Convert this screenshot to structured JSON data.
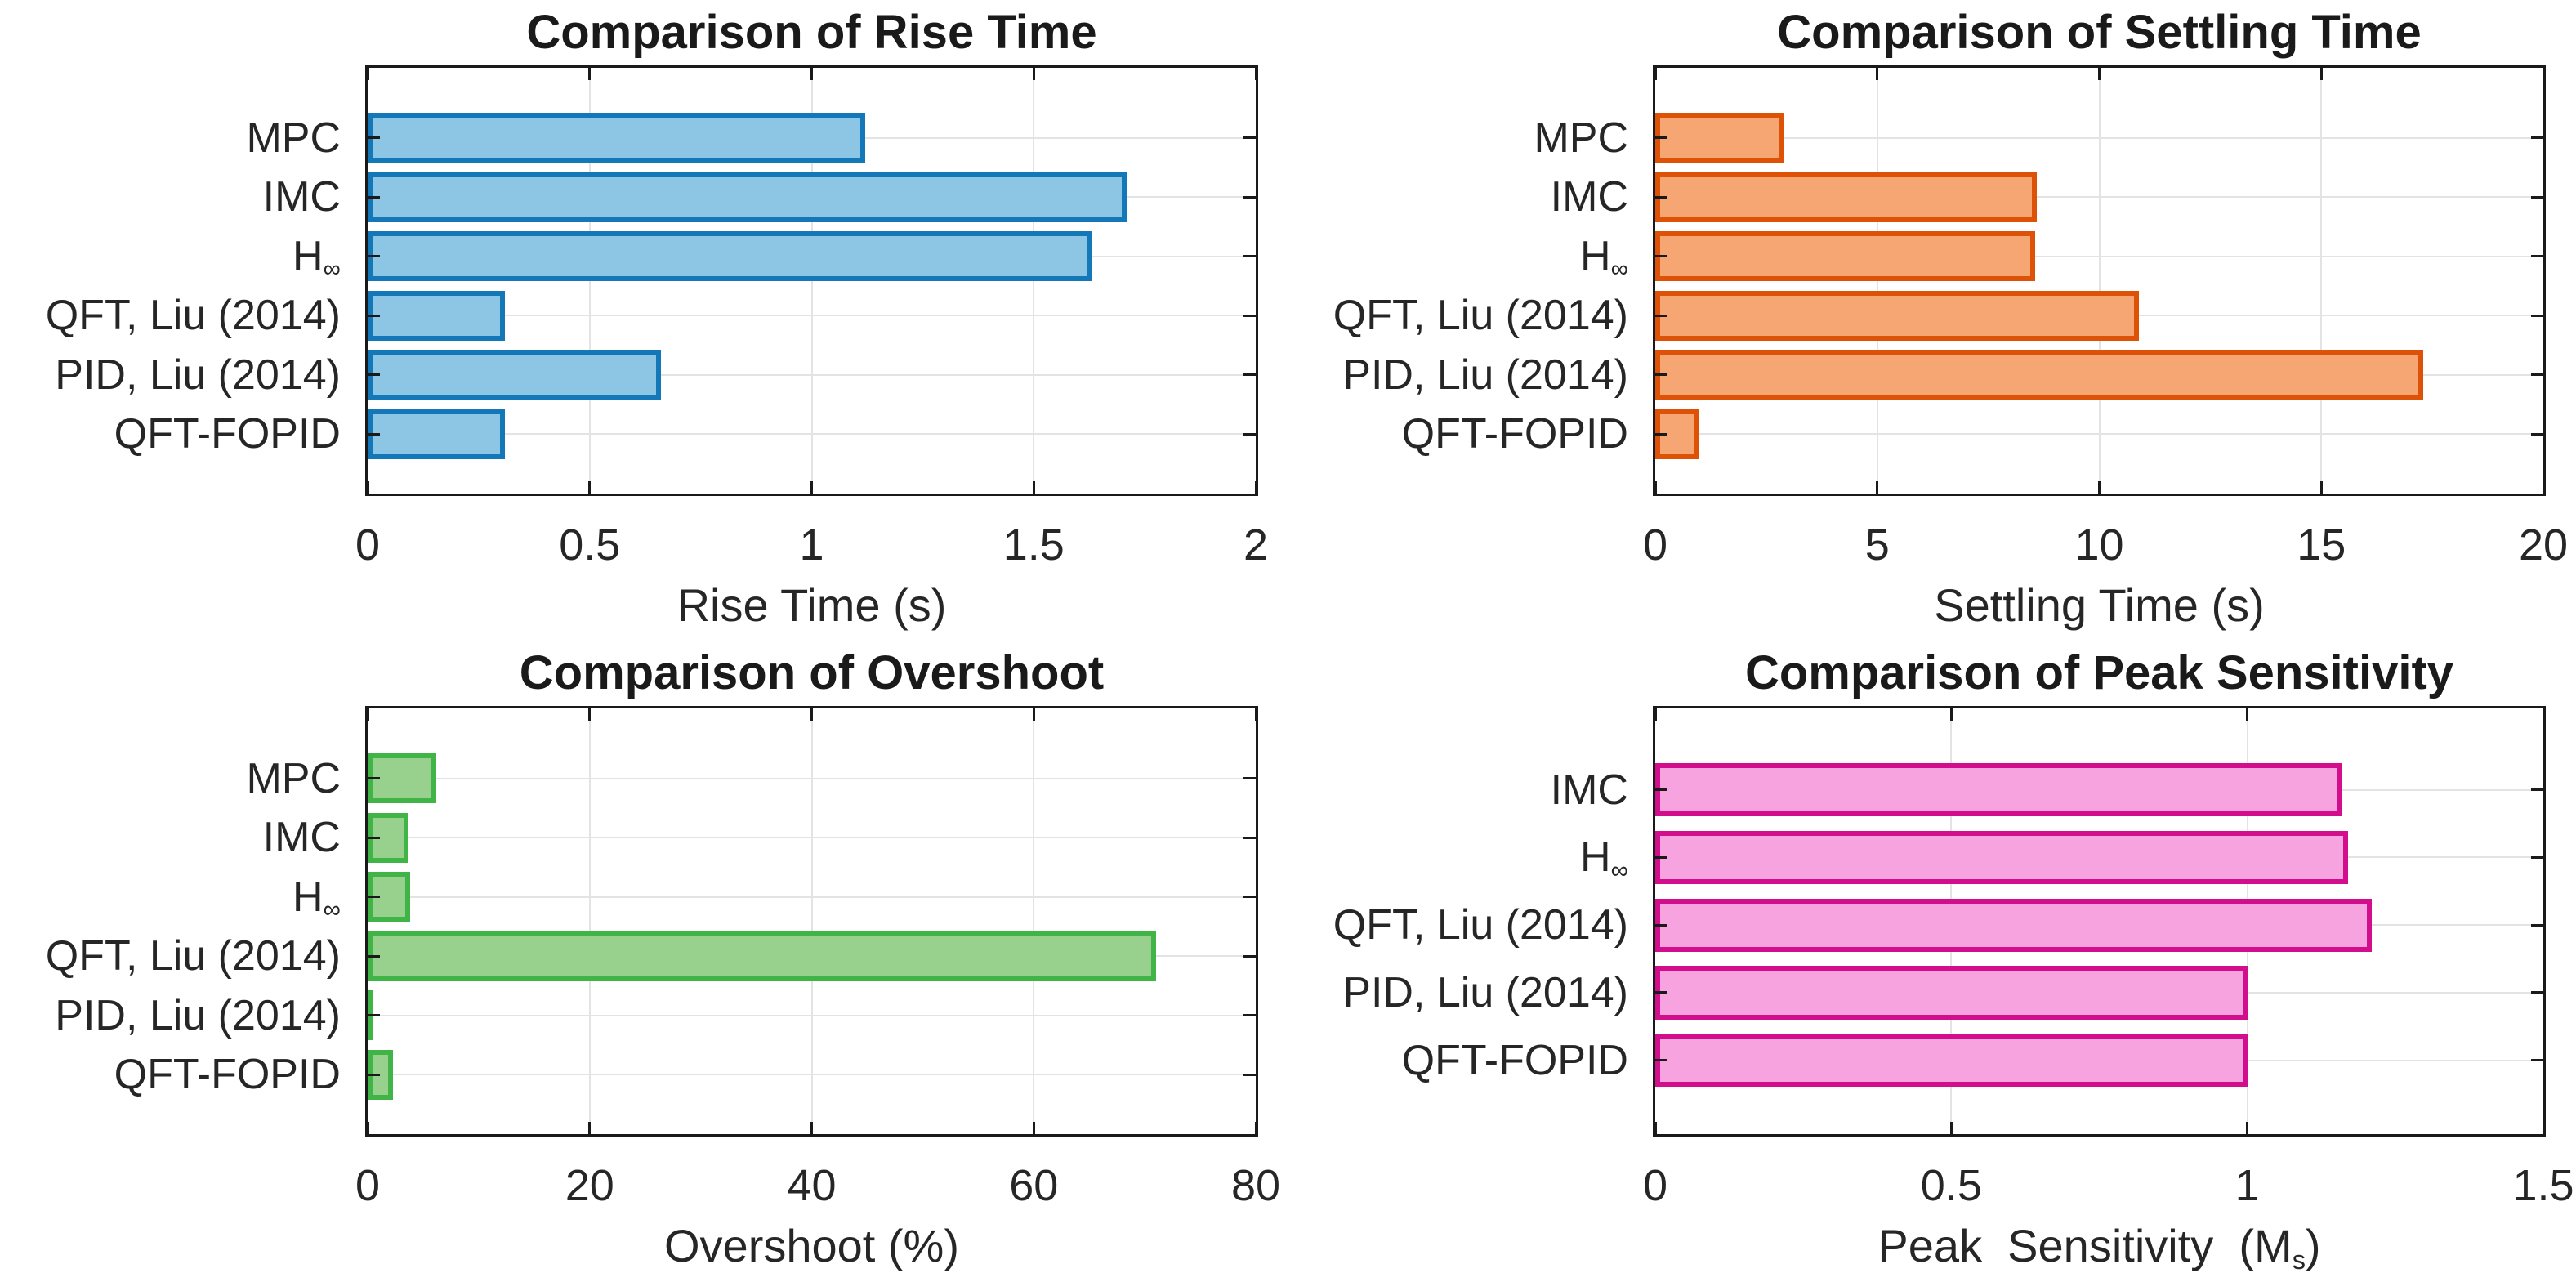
{
  "figure": {
    "background": "#ffffff",
    "text_color": "#262626",
    "title_color": "#1a1a1a",
    "axis_color": "#1a1a1a",
    "grid_color": "#e3e3e3"
  },
  "chart_data": [
    {
      "type": "bar",
      "orientation": "horizontal",
      "title": "Comparison of Rise Time",
      "xlabel": {
        "text": "Rise Time (s)"
      },
      "categories": [
        {
          "text": "MPC"
        },
        {
          "text": "IMC"
        },
        {
          "text": "H∞",
          "base": "H",
          "sub": "∞"
        },
        {
          "text": "QFT, Liu (2014)"
        },
        {
          "text": "PID, Liu (2014)"
        },
        {
          "text": "QFT-FOPID"
        }
      ],
      "values": [
        1.12,
        1.71,
        1.63,
        0.31,
        0.66,
        0.31
      ],
      "xlim": [
        0,
        2
      ],
      "xticks": [
        0,
        0.5,
        1,
        1.5,
        2
      ],
      "xtick_labels": [
        "0",
        "0.5",
        "1",
        "1.5",
        "2"
      ],
      "grid": true,
      "legend": null,
      "colors": {
        "fill": "#8cc6e4",
        "edge": "#1377b8"
      }
    },
    {
      "type": "bar",
      "orientation": "horizontal",
      "title": "Comparison of Settling Time",
      "xlabel": {
        "text": "Settling Time (s)"
      },
      "categories": [
        {
          "text": "MPC"
        },
        {
          "text": "IMC"
        },
        {
          "text": "H∞",
          "base": "H",
          "sub": "∞"
        },
        {
          "text": "QFT, Liu (2014)"
        },
        {
          "text": "PID, Liu (2014)"
        },
        {
          "text": "QFT-FOPID"
        }
      ],
      "values": [
        2.9,
        8.6,
        8.55,
        10.9,
        17.3,
        1.0
      ],
      "xlim": [
        0,
        20
      ],
      "xticks": [
        0,
        5,
        10,
        15,
        20
      ],
      "xtick_labels": [
        "0",
        "5",
        "10",
        "15",
        "20"
      ],
      "grid": true,
      "legend": null,
      "colors": {
        "fill": "#f5a672",
        "edge": "#de5207"
      }
    },
    {
      "type": "bar",
      "orientation": "horizontal",
      "title": "Comparison of Overshoot",
      "xlabel": {
        "text": "Overshoot (%)"
      },
      "categories": [
        {
          "text": "MPC"
        },
        {
          "text": "IMC"
        },
        {
          "text": "H∞",
          "base": "H",
          "sub": "∞"
        },
        {
          "text": "QFT, Liu (2014)"
        },
        {
          "text": "PID, Liu (2014)"
        },
        {
          "text": "QFT-FOPID"
        }
      ],
      "values": [
        6.2,
        3.7,
        3.8,
        71,
        0.2,
        2.3
      ],
      "xlim": [
        0,
        80
      ],
      "xticks": [
        0,
        20,
        40,
        60,
        80
      ],
      "xtick_labels": [
        "0",
        "20",
        "40",
        "60",
        "80"
      ],
      "grid": true,
      "legend": null,
      "colors": {
        "fill": "#98d18d",
        "edge": "#41b447"
      }
    },
    {
      "type": "bar",
      "orientation": "horizontal",
      "title": "Comparison of Peak Sensitivity",
      "xlabel": {
        "text": "Peak  Sensitivity  (Ms)",
        "base": "Peak  Sensitivity  (M",
        "sub": "s",
        "suffix": ")"
      },
      "categories": [
        {
          "text": "IMC"
        },
        {
          "text": "H∞",
          "base": "H",
          "sub": "∞"
        },
        {
          "text": "QFT, Liu (2014)"
        },
        {
          "text": "PID, Liu (2014)"
        },
        {
          "text": "QFT-FOPID"
        }
      ],
      "values": [
        1.16,
        1.17,
        1.21,
        1.0,
        1.0
      ],
      "xlim": [
        0,
        1.5
      ],
      "xticks": [
        0,
        0.5,
        1,
        1.5
      ],
      "xtick_labels": [
        "0",
        "0.5",
        "1",
        "1.5"
      ],
      "grid": true,
      "legend": null,
      "colors": {
        "fill": "#f6a3df",
        "edge": "#d30e8d"
      }
    }
  ]
}
